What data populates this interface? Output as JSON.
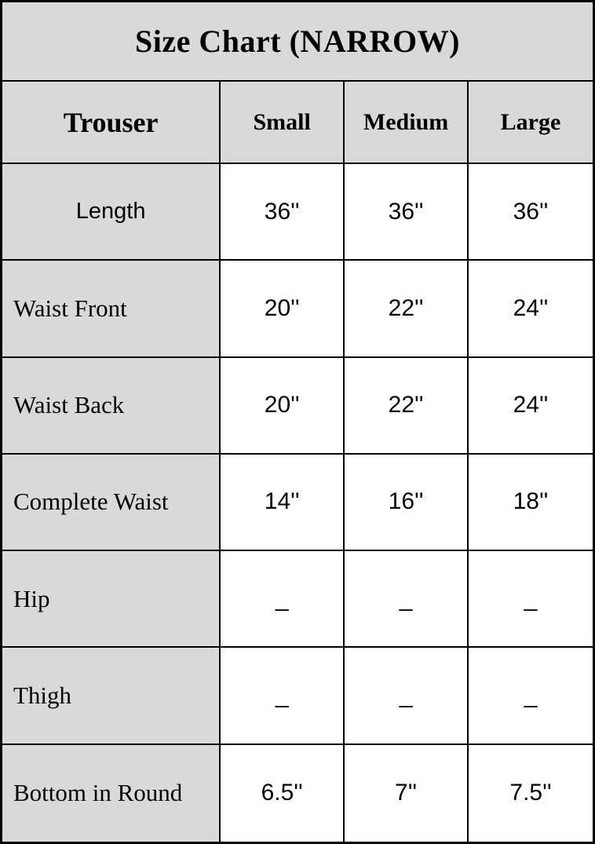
{
  "chart_data": {
    "type": "table",
    "title": "Size Chart (NARROW)",
    "columns": [
      "Trouser",
      "Small",
      "Medium",
      "Large"
    ],
    "rows": [
      {
        "label": "Length",
        "values": [
          "36''",
          "36''",
          "36''"
        ]
      },
      {
        "label": "Waist Front",
        "values": [
          "20''",
          "22''",
          "24''"
        ]
      },
      {
        "label": "Waist Back",
        "values": [
          "20''",
          "22''",
          "24''"
        ]
      },
      {
        "label": "Complete Waist",
        "values": [
          "14''",
          "16''",
          "18''"
        ]
      },
      {
        "label": "Hip",
        "values": [
          "_",
          "_",
          "_"
        ]
      },
      {
        "label": "Thigh",
        "values": [
          "_",
          "_",
          "_"
        ]
      },
      {
        "label": "Bottom in Round",
        "values": [
          "6.5''",
          "7''",
          "7.5''"
        ]
      }
    ]
  },
  "colors": {
    "header_bg": "#d9d9d9",
    "cell_bg": "#ffffff",
    "border": "#000000",
    "text": "#000000"
  }
}
